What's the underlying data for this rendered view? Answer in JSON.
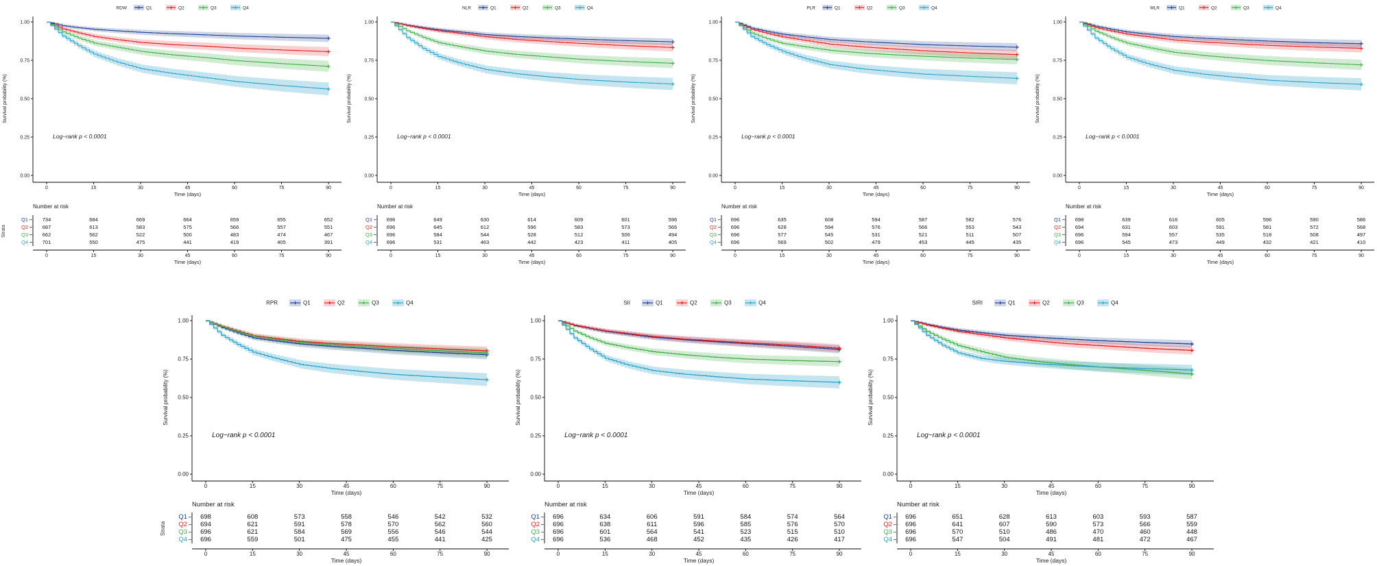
{
  "figure": {
    "ylabel": "Survival probability (%)",
    "xlabel": "Time (days)",
    "strata_label": "Strata",
    "risk_header": "Number at risk",
    "logrank_text": "Log−rank p < 0.0001",
    "legend_labels": [
      "Q1",
      "Q2",
      "Q3",
      "Q4"
    ],
    "x_ticks": [
      0,
      15,
      30,
      45,
      60,
      75,
      90
    ],
    "y_tick_labels": [
      "1.00",
      "0.75",
      "0.50",
      "0.25",
      "0.00"
    ],
    "xlim": [
      0,
      90
    ],
    "ylim": [
      0,
      1
    ],
    "grid": false,
    "legend_position": "top",
    "colors": {
      "Q1": "#1c3e8f",
      "Q2": "#e41a1c",
      "Q3": "#3fae49",
      "Q4": "#2aa3c6"
    },
    "band_colors": {
      "Q1": "rgba(28,62,143,0.22)",
      "Q2": "rgba(228,26,28,0.20)",
      "Q3": "rgba(63,174,73,0.24)",
      "Q4": "rgba(42,163,198,0.28)"
    },
    "text_color": "#1a1a1a"
  },
  "chart_data": [
    {
      "panel": "RDW",
      "type": "line",
      "row": "top",
      "show_strata": true,
      "x": [
        0,
        5,
        10,
        15,
        22,
        30,
        40,
        50,
        60,
        75,
        90
      ],
      "series": [
        {
          "name": "Q1",
          "y": [
            1,
            0.975,
            0.962,
            0.952,
            0.942,
            0.932,
            0.923,
            0.916,
            0.908,
            0.9,
            0.893
          ],
          "ci90": 0.024
        },
        {
          "name": "Q2",
          "y": [
            1,
            0.955,
            0.928,
            0.905,
            0.885,
            0.866,
            0.852,
            0.842,
            0.83,
            0.817,
            0.806
          ],
          "ci90": 0.03
        },
        {
          "name": "Q3",
          "y": [
            1,
            0.935,
            0.895,
            0.862,
            0.836,
            0.808,
            0.785,
            0.768,
            0.748,
            0.728,
            0.71
          ],
          "ci90": 0.036
        },
        {
          "name": "Q4",
          "y": [
            1,
            0.908,
            0.845,
            0.79,
            0.74,
            0.695,
            0.664,
            0.638,
            0.612,
            0.585,
            0.562
          ],
          "ci90": 0.042
        }
      ],
      "risk_table": [
        [
          734,
          684,
          669,
          664,
          659,
          655,
          652
        ],
        [
          687,
          613,
          583,
          575,
          566,
          557,
          551
        ],
        [
          662,
          562,
          522,
          500,
          483,
          474,
          467
        ],
        [
          701,
          550,
          475,
          441,
          419,
          405,
          391
        ]
      ]
    },
    {
      "panel": "NLR",
      "type": "line",
      "row": "top",
      "show_strata": false,
      "x": [
        0,
        5,
        10,
        15,
        22,
        30,
        40,
        50,
        60,
        75,
        90
      ],
      "series": [
        {
          "name": "Q1",
          "y": [
            1,
            0.978,
            0.962,
            0.948,
            0.934,
            0.917,
            0.905,
            0.896,
            0.888,
            0.878,
            0.87
          ],
          "ci90": 0.022
        },
        {
          "name": "Q2",
          "y": [
            1,
            0.976,
            0.958,
            0.942,
            0.925,
            0.903,
            0.885,
            0.872,
            0.86,
            0.845,
            0.833
          ],
          "ci90": 0.026
        },
        {
          "name": "Q3",
          "y": [
            1,
            0.942,
            0.9,
            0.865,
            0.838,
            0.81,
            0.788,
            0.772,
            0.757,
            0.742,
            0.73
          ],
          "ci90": 0.032
        },
        {
          "name": "Q4",
          "y": [
            1,
            0.898,
            0.828,
            0.775,
            0.73,
            0.69,
            0.662,
            0.642,
            0.625,
            0.608,
            0.595
          ],
          "ci90": 0.04
        }
      ],
      "risk_table": [
        [
          696,
          649,
          630,
          614,
          609,
          601,
          596
        ],
        [
          696,
          645,
          612,
          596,
          583,
          573,
          566
        ],
        [
          696,
          584,
          544,
          528,
          512,
          506,
          494
        ],
        [
          696,
          531,
          463,
          442,
          423,
          411,
          405
        ]
      ]
    },
    {
      "panel": "PLR",
      "type": "line",
      "row": "top",
      "show_strata": false,
      "x": [
        0,
        5,
        10,
        15,
        22,
        30,
        40,
        50,
        60,
        75,
        90
      ],
      "series": [
        {
          "name": "Q1",
          "y": [
            1,
            0.96,
            0.938,
            0.92,
            0.903,
            0.885,
            0.872,
            0.862,
            0.852,
            0.843,
            0.835
          ],
          "ci90": 0.026
        },
        {
          "name": "Q2",
          "y": [
            1,
            0.952,
            0.925,
            0.902,
            0.88,
            0.855,
            0.838,
            0.824,
            0.812,
            0.798,
            0.787
          ],
          "ci90": 0.03
        },
        {
          "name": "Q3",
          "y": [
            1,
            0.928,
            0.89,
            0.86,
            0.838,
            0.815,
            0.798,
            0.786,
            0.776,
            0.764,
            0.755
          ],
          "ci90": 0.032
        },
        {
          "name": "Q4",
          "y": [
            1,
            0.905,
            0.852,
            0.808,
            0.762,
            0.722,
            0.695,
            0.676,
            0.66,
            0.645,
            0.632
          ],
          "ci90": 0.04
        }
      ],
      "risk_table": [
        [
          696,
          635,
          608,
          594,
          587,
          582,
          576
        ],
        [
          696,
          628,
          594,
          576,
          566,
          553,
          543
        ],
        [
          696,
          577,
          545,
          531,
          521,
          511,
          507
        ],
        [
          696,
          569,
          502,
          479,
          453,
          445,
          435
        ]
      ]
    },
    {
      "panel": "MLR",
      "type": "line",
      "row": "top",
      "show_strata": false,
      "x": [
        0,
        5,
        10,
        15,
        22,
        30,
        40,
        50,
        60,
        75,
        90
      ],
      "series": [
        {
          "name": "Q1",
          "y": [
            1,
            0.972,
            0.952,
            0.935,
            0.92,
            0.905,
            0.893,
            0.884,
            0.875,
            0.865,
            0.858
          ],
          "ci90": 0.024
        },
        {
          "name": "Q2",
          "y": [
            1,
            0.962,
            0.94,
            0.92,
            0.902,
            0.882,
            0.868,
            0.857,
            0.847,
            0.836,
            0.828
          ],
          "ci90": 0.028
        },
        {
          "name": "Q3",
          "y": [
            1,
            0.94,
            0.898,
            0.862,
            0.832,
            0.802,
            0.78,
            0.763,
            0.748,
            0.733,
            0.72
          ],
          "ci90": 0.034
        },
        {
          "name": "Q4",
          "y": [
            1,
            0.895,
            0.825,
            0.77,
            0.725,
            0.685,
            0.658,
            0.638,
            0.62,
            0.605,
            0.593
          ],
          "ci90": 0.04
        }
      ],
      "risk_table": [
        [
          698,
          639,
          616,
          605,
          596,
          590,
          586
        ],
        [
          694,
          631,
          603,
          591,
          581,
          572,
          568
        ],
        [
          696,
          594,
          557,
          535,
          518,
          508,
          497
        ],
        [
          696,
          545,
          473,
          449,
          432,
          421,
          410
        ]
      ]
    },
    {
      "panel": "RPR",
      "type": "line",
      "row": "bottom",
      "show_strata": true,
      "x": [
        0,
        5,
        10,
        15,
        22,
        30,
        40,
        50,
        60,
        75,
        90
      ],
      "series": [
        {
          "name": "Q1",
          "y": [
            1,
            0.955,
            0.92,
            0.888,
            0.868,
            0.848,
            0.832,
            0.82,
            0.806,
            0.791,
            0.778
          ],
          "ci90": 0.03
        },
        {
          "name": "Q2",
          "y": [
            1,
            0.962,
            0.932,
            0.902,
            0.884,
            0.865,
            0.851,
            0.841,
            0.829,
            0.816,
            0.803
          ],
          "ci90": 0.028
        },
        {
          "name": "Q3",
          "y": [
            1,
            0.96,
            0.928,
            0.898,
            0.878,
            0.858,
            0.842,
            0.83,
            0.818,
            0.803,
            0.79
          ],
          "ci90": 0.03
        },
        {
          "name": "Q4",
          "y": [
            1,
            0.905,
            0.845,
            0.795,
            0.755,
            0.715,
            0.688,
            0.668,
            0.65,
            0.632,
            0.615
          ],
          "ci90": 0.042
        }
      ],
      "risk_table": [
        [
          698,
          608,
          573,
          558,
          546,
          542,
          532
        ],
        [
          694,
          621,
          591,
          578,
          570,
          562,
          560
        ],
        [
          696,
          621,
          584,
          569,
          556,
          546,
          544
        ],
        [
          696,
          559,
          501,
          475,
          455,
          441,
          425
        ]
      ]
    },
    {
      "panel": "SII",
      "type": "line",
      "row": "bottom",
      "show_strata": false,
      "x": [
        0,
        5,
        10,
        15,
        22,
        30,
        40,
        50,
        60,
        75,
        90
      ],
      "series": [
        {
          "name": "Q1",
          "y": [
            1,
            0.968,
            0.948,
            0.93,
            0.912,
            0.892,
            0.876,
            0.862,
            0.85,
            0.832,
            0.812
          ],
          "ci90": 0.026
        },
        {
          "name": "Q2",
          "y": [
            1,
            0.97,
            0.951,
            0.933,
            0.916,
            0.897,
            0.88,
            0.868,
            0.856,
            0.84,
            0.82
          ],
          "ci90": 0.026
        },
        {
          "name": "Q3",
          "y": [
            1,
            0.932,
            0.888,
            0.852,
            0.825,
            0.798,
            0.778,
            0.762,
            0.75,
            0.74,
            0.733
          ],
          "ci90": 0.032
        },
        {
          "name": "Q4",
          "y": [
            1,
            0.888,
            0.815,
            0.755,
            0.712,
            0.675,
            0.652,
            0.635,
            0.62,
            0.608,
            0.598
          ],
          "ci90": 0.04
        }
      ],
      "risk_table": [
        [
          696,
          634,
          606,
          591,
          584,
          574,
          564
        ],
        [
          696,
          638,
          611,
          596,
          585,
          576,
          570
        ],
        [
          696,
          601,
          564,
          541,
          523,
          515,
          510
        ],
        [
          696,
          536,
          468,
          452,
          435,
          426,
          417
        ]
      ]
    },
    {
      "panel": "SIRI",
      "type": "line",
      "row": "bottom",
      "show_strata": false,
      "x": [
        0,
        5,
        10,
        15,
        22,
        30,
        40,
        50,
        60,
        75,
        90
      ],
      "series": [
        {
          "name": "Q1",
          "y": [
            1,
            0.975,
            0.955,
            0.938,
            0.922,
            0.905,
            0.892,
            0.88,
            0.87,
            0.858,
            0.848
          ],
          "ci90": 0.024
        },
        {
          "name": "Q2",
          "y": [
            1,
            0.972,
            0.95,
            0.93,
            0.91,
            0.888,
            0.868,
            0.85,
            0.838,
            0.82,
            0.806
          ],
          "ci90": 0.028
        },
        {
          "name": "Q3",
          "y": [
            1,
            0.93,
            0.88,
            0.838,
            0.8,
            0.762,
            0.735,
            0.715,
            0.698,
            0.676,
            0.652
          ],
          "ci90": 0.036
        },
        {
          "name": "Q4",
          "y": [
            1,
            0.905,
            0.84,
            0.79,
            0.755,
            0.735,
            0.72,
            0.708,
            0.698,
            0.688,
            0.678
          ],
          "ci90": 0.034
        }
      ],
      "risk_table": [
        [
          696,
          651,
          628,
          613,
          603,
          593,
          587
        ],
        [
          696,
          641,
          607,
          590,
          573,
          566,
          559
        ],
        [
          696,
          570,
          510,
          486,
          470,
          460,
          448
        ],
        [
          696,
          547,
          504,
          491,
          481,
          472,
          467
        ]
      ]
    }
  ]
}
